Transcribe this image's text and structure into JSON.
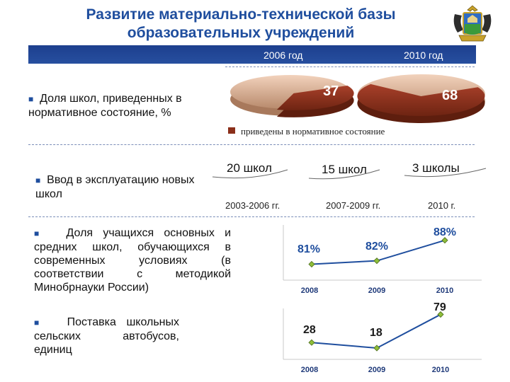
{
  "header": {
    "title_line1": "Развитие материально-технической базы",
    "title_line2": "образовательных учреждений",
    "year_left": "2006 год",
    "year_right": "2010 год"
  },
  "colors": {
    "accent": "#1f4e9e",
    "pie_highlight": "#8b2f1a",
    "pie_base": "#d7a98a",
    "line": "#1f4e9e",
    "marker": "#8fbf3a"
  },
  "sections": {
    "share_label": "Доля школ, приведенных в нормативное состояние, %",
    "new_schools_label": "Ввод в эксплуатацию новых школ",
    "modern_label": "Доля учащихся основных и средних школ, обучающихся в современных условиях (в соответствии с методикой Минобрнауки России)",
    "buses_label": "Поставка школьных сельских автобусов, единиц"
  },
  "new_schools": [
    {
      "count": "20 школ",
      "period": "2003-2006 гг."
    },
    {
      "count": "15 школ",
      "period": "2007-2009 гг."
    },
    {
      "count": "3 школы",
      "period": "2010 г."
    }
  ],
  "chart_data": [
    {
      "type": "pie",
      "legend": [
        "приведены в нормативное состояние"
      ],
      "categories": [
        "2006 год",
        "2010 год"
      ],
      "values": [
        37,
        68
      ],
      "data_labels": [
        "37",
        "68"
      ]
    },
    {
      "type": "line",
      "x": [
        "2008",
        "2009",
        "2010"
      ],
      "series": [
        {
          "values": [
            81,
            82,
            88
          ]
        }
      ],
      "data_labels": [
        "81%",
        "82%",
        "88%"
      ],
      "ylim": [
        78,
        90
      ]
    },
    {
      "type": "line",
      "x": [
        "2008",
        "2009",
        "2010"
      ],
      "series": [
        {
          "values": [
            28,
            18,
            79
          ]
        }
      ],
      "data_labels": [
        "28",
        "18",
        "79"
      ],
      "ylim": [
        0,
        90
      ]
    }
  ]
}
